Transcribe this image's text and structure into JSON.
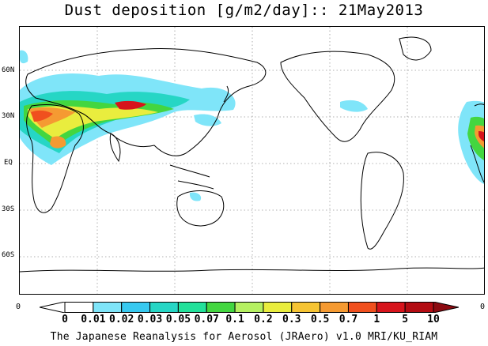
{
  "title": "Dust deposition [g/m2/day]:: 21May2013",
  "lat_labels": [
    "60N",
    "30N",
    "EQ",
    "30S",
    "60S"
  ],
  "corner_left": "0",
  "corner_right": "0",
  "colorbar": {
    "labels": [
      "0",
      "0.01",
      "0.02",
      "0.03",
      "0.05",
      "0.07",
      "0.1",
      "0.2",
      "0.3",
      "0.5",
      "0.7",
      "1",
      "5",
      "10"
    ],
    "colors": [
      "#ffffff",
      "#ffffff",
      "#7fe5f9",
      "#37c9f0",
      "#26d6c5",
      "#22e19a",
      "#43d640",
      "#b5f061",
      "#e9ed3e",
      "#f6c433",
      "#f59a32",
      "#f0501e",
      "#d7141c",
      "#b30c12",
      "#8c0a10"
    ]
  },
  "footer": "The Japanese Reanalysis for Aerosol (JRAero) v1.0 MRI/KU_RIAM"
}
